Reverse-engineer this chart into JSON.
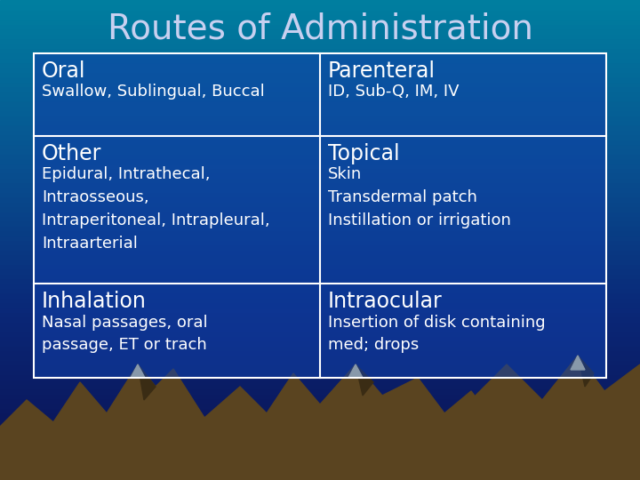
{
  "title": "Routes of Administration",
  "title_color": "#C8D0F0",
  "title_fontsize": 28,
  "table_border_color": "#FFFFFF",
  "table_text_color": "#FFFFFF",
  "cells": [
    {
      "row": 0,
      "col": 0,
      "header": "Oral",
      "body": "Swallow, Sublingual, Buccal"
    },
    {
      "row": 0,
      "col": 1,
      "header": "Parenteral",
      "body": "ID, Sub-Q, IM, IV"
    },
    {
      "row": 1,
      "col": 0,
      "header": "Other",
      "body": "Epidural, Intrathecal,\nIntraosseous,\nIntraperitoneal, Intrapleural,\nIntraarterial"
    },
    {
      "row": 1,
      "col": 1,
      "header": "Topical",
      "body": "Skin\nTransdermal patch\nInstillation or irrigation"
    },
    {
      "row": 2,
      "col": 0,
      "header": "Inhalation",
      "body": "Nasal passages, oral\npassage, ET or trach"
    },
    {
      "row": 2,
      "col": 1,
      "header": "Intraocular",
      "body": "Insertion of disk containing\nmed; drops"
    }
  ],
  "header_fontsize": 17,
  "body_fontsize": 13,
  "bg_dark": "#0A1050",
  "bg_mid": "#0A2878",
  "bg_light": "#1060A0",
  "bg_teal": "#10A0B0",
  "mountain_color": "#5A4420",
  "mountain_shadow": "#3A2C14",
  "snow_color": "#8899AA",
  "teal_water": "#00D0B0"
}
